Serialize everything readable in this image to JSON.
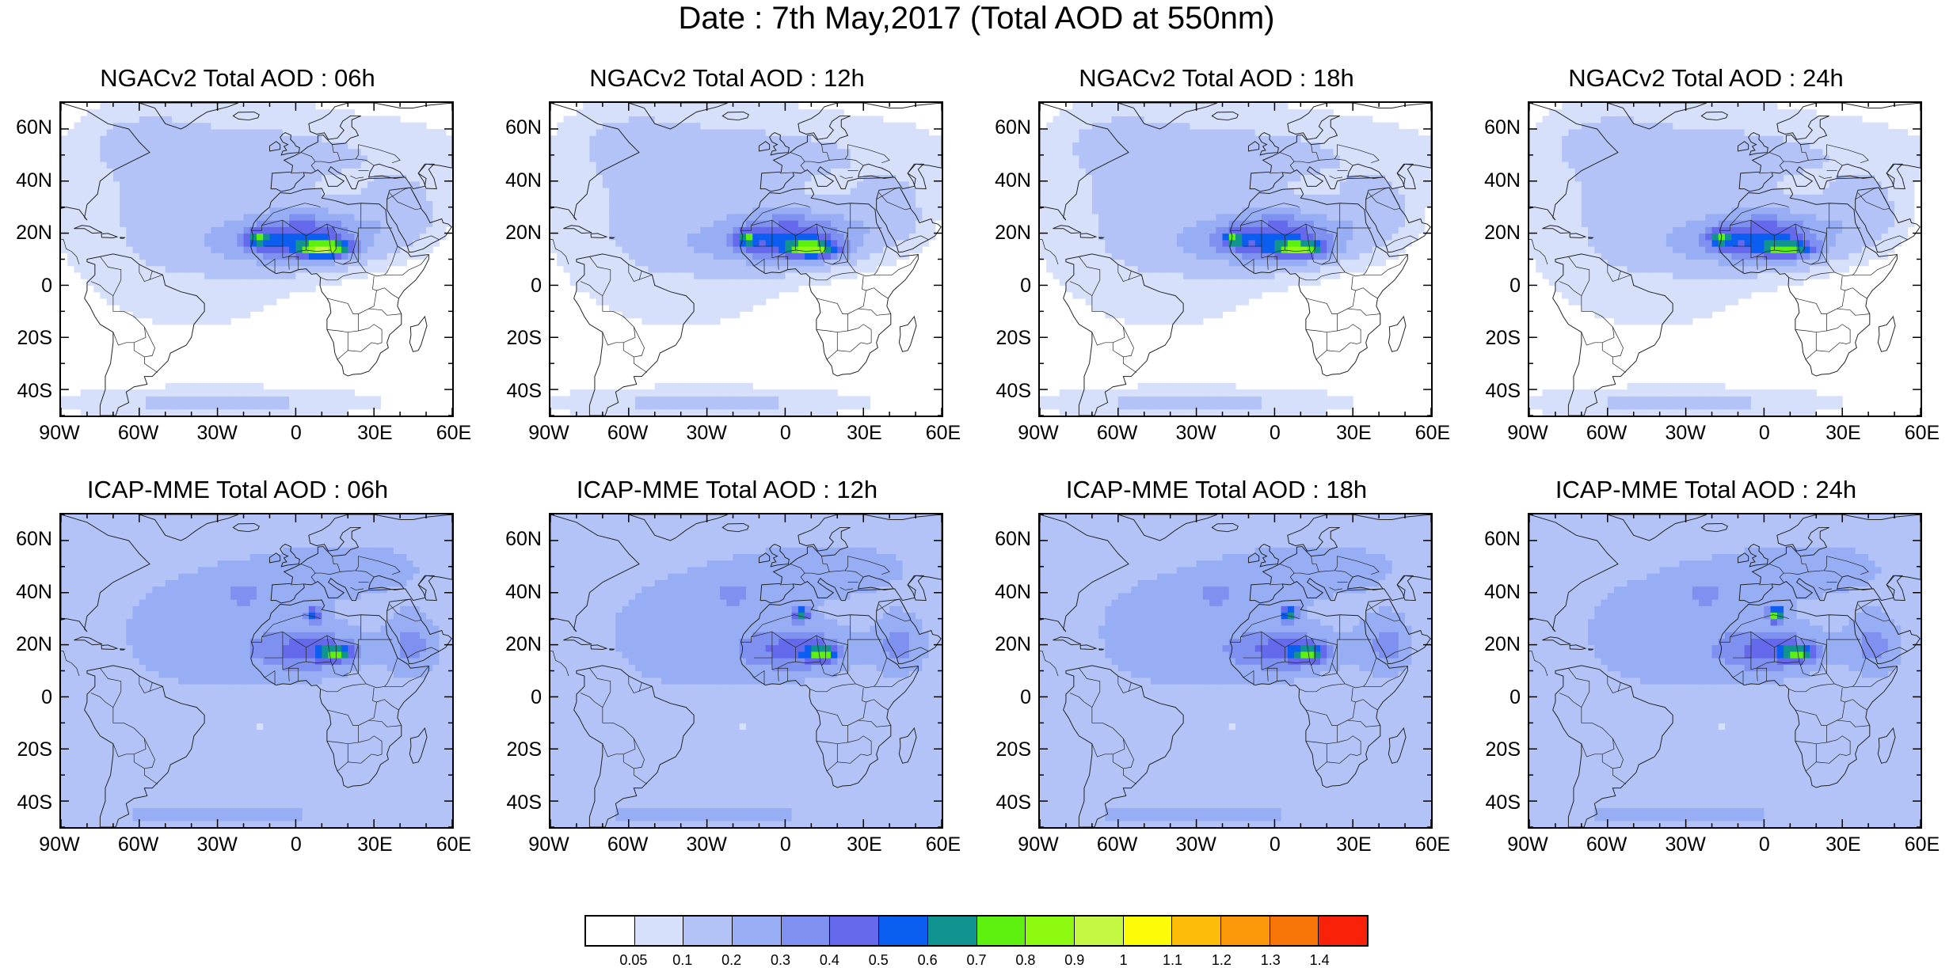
{
  "title": "Date : 7th May,2017 (Total AOD at 550nm)",
  "lat_labels": [
    "60N",
    "40N",
    "20N",
    "0",
    "20S",
    "40S"
  ],
  "lon_labels": [
    "90W",
    "60W",
    "30W",
    "0",
    "30E",
    "60E"
  ],
  "panels": [
    {
      "title": "NGACv2 Total AOD : 06h",
      "model": "NGACv2",
      "hour": "06h"
    },
    {
      "title": "NGACv2 Total AOD : 12h",
      "model": "NGACv2",
      "hour": "12h"
    },
    {
      "title": "NGACv2 Total AOD : 18h",
      "model": "NGACv2",
      "hour": "18h"
    },
    {
      "title": "NGACv2 Total AOD : 24h",
      "model": "NGACv2",
      "hour": "24h"
    },
    {
      "title": "ICAP-MME Total AOD : 06h",
      "model": "ICAP-MME",
      "hour": "06h"
    },
    {
      "title": "ICAP-MME Total AOD : 12h",
      "model": "ICAP-MME",
      "hour": "12h"
    },
    {
      "title": "ICAP-MME Total AOD : 18h",
      "model": "ICAP-MME",
      "hour": "18h"
    },
    {
      "title": "ICAP-MME Total AOD : 24h",
      "model": "ICAP-MME",
      "hour": "24h"
    }
  ],
  "colorbar": {
    "labels": [
      "0.05",
      "0.1",
      "0.2",
      "0.3",
      "0.4",
      "0.5",
      "0.6",
      "0.7",
      "0.8",
      "0.9",
      "1",
      "1.1",
      "1.2",
      "1.3",
      "1.4"
    ],
    "colors": [
      "#ffffff",
      "#d7e0fb",
      "#b3c3f7",
      "#97aef5",
      "#7f91f0",
      "#6569ec",
      "#0c5ef0",
      "#11948f",
      "#5ef00e",
      "#8dfa10",
      "#c5f842",
      "#fcfc08",
      "#fcbc07",
      "#f9990a",
      "#f77607",
      "#fa2109"
    ]
  }
}
